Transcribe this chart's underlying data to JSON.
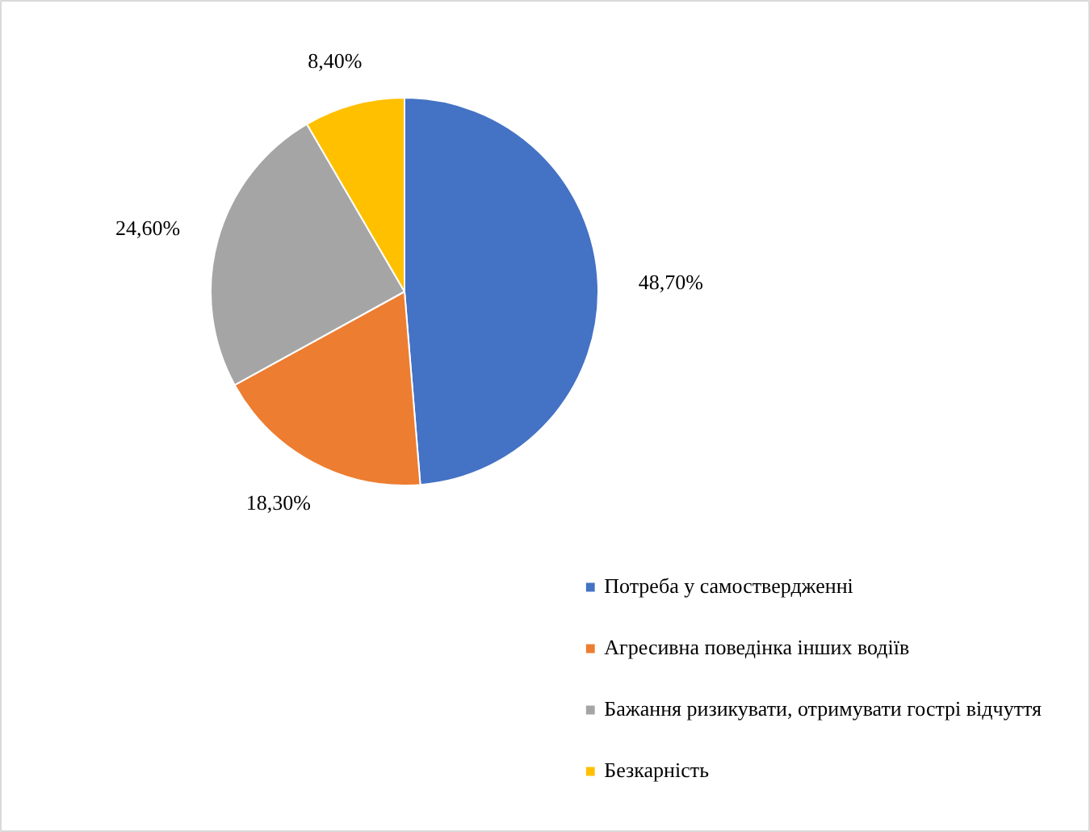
{
  "chart_data": {
    "type": "pie",
    "categories": [
      "Потреба у самоствердженні",
      "Агресивна поведінка інших водіїв",
      "Бажання ризикувати, отримувати гострі відчуття",
      "Безкарність"
    ],
    "values": [
      48.7,
      18.3,
      24.6,
      8.4
    ],
    "colors": [
      "#4472c4",
      "#ed7d31",
      "#a5a5a5",
      "#ffc000"
    ],
    "value_labels": [
      "48,70%",
      "18,30%",
      "24,60%",
      "8,40%"
    ],
    "legend": "bottom right"
  }
}
